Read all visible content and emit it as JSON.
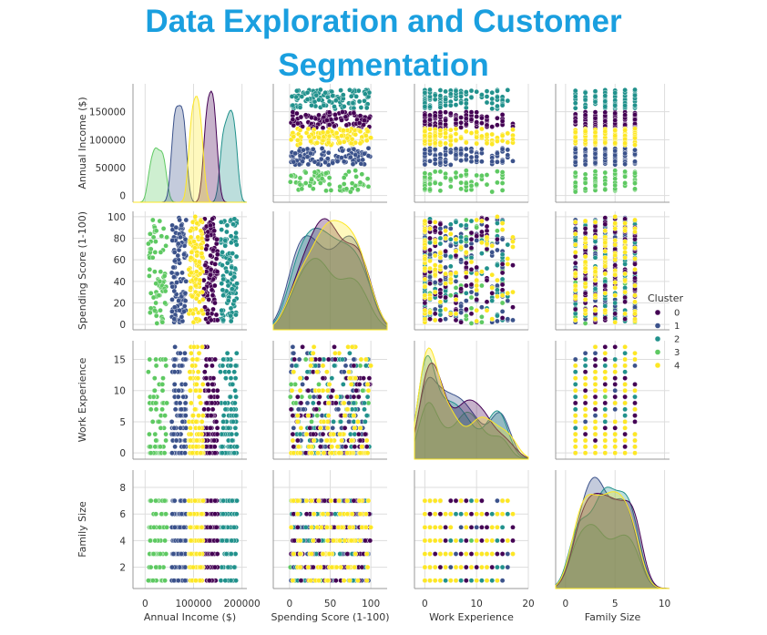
{
  "page": {
    "title_line1": "Data Exploration and Customer",
    "title_line2": "Segmentation"
  },
  "chart_data": {
    "type": "scatter",
    "subtype": "pairplot",
    "title": "Data Exploration and Customer Segmentation",
    "variables": [
      "Annual Income ($)",
      "Spending Score (1-100)",
      "Work Experience",
      "Family Size"
    ],
    "diagonal": "kde",
    "hue": "Cluster",
    "palette": "viridis",
    "legend": {
      "title": "Cluster",
      "placement": "right",
      "entries": [
        "0",
        "1",
        "2",
        "3",
        "4"
      ]
    },
    "cluster_colors": [
      "#440154",
      "#3b528b",
      "#21918c",
      "#5ec962",
      "#fde725"
    ],
    "axes": {
      "Annual Income ($)": {
        "range": [
          -12000,
          200000
        ],
        "ticks": [
          0,
          50000,
          100000,
          150000
        ],
        "tick_labels_y": [
          "0",
          "50000",
          "100000",
          "150000"
        ],
        "tick_labels_x": [
          "0",
          "100000",
          "200000"
        ],
        "x_ticks": [
          0,
          100000,
          200000
        ],
        "x_range": [
          -25000,
          210000
        ]
      },
      "Spending Score (1-100)": {
        "range": [
          -5,
          105
        ],
        "ticks": [
          0,
          20,
          40,
          60,
          80,
          100
        ],
        "tick_labels_y": [
          "0",
          "20",
          "40",
          "60",
          "80",
          "100"
        ],
        "x_ticks": [
          0,
          50,
          100
        ],
        "tick_labels_x": [
          "0",
          "50",
          "100"
        ],
        "x_range": [
          -20,
          120
        ]
      },
      "Work Experience": {
        "range": [
          -1,
          18
        ],
        "ticks": [
          0,
          5,
          10,
          15
        ],
        "tick_labels_y": [
          "0",
          "5",
          "10",
          "15"
        ],
        "x_ticks": [
          0,
          10,
          20
        ],
        "tick_labels_x": [
          "0",
          "10",
          "20"
        ],
        "x_range": [
          -2,
          20
        ]
      },
      "Family Size": {
        "range": [
          0.4,
          9.3
        ],
        "ticks": [
          2,
          4,
          6,
          8
        ],
        "tick_labels_y": [
          "2",
          "4",
          "6",
          "8"
        ],
        "x_ticks": [
          0,
          5,
          10
        ],
        "tick_labels_x": [
          "0",
          "5",
          "10"
        ],
        "x_range": [
          -1,
          10.5
        ]
      }
    },
    "clusters": [
      {
        "name": "0",
        "income_range": [
          120000,
          150000
        ],
        "spending_range": [
          1,
          100
        ],
        "work_experience_range": [
          0,
          17
        ],
        "family_size_range": [
          1,
          8
        ]
      },
      {
        "name": "1",
        "income_range": [
          55000,
          85000
        ],
        "spending_range": [
          1,
          100
        ],
        "work_experience_range": [
          0,
          17
        ],
        "family_size_range": [
          1,
          8
        ]
      },
      {
        "name": "2",
        "income_range": [
          155000,
          190000
        ],
        "spending_range": [
          1,
          100
        ],
        "work_experience_range": [
          0,
          16
        ],
        "family_size_range": [
          1,
          7
        ]
      },
      {
        "name": "3",
        "income_range": [
          5000,
          45000
        ],
        "spending_range": [
          1,
          100
        ],
        "work_experience_range": [
          0,
          15
        ],
        "family_size_range": [
          1,
          9
        ]
      },
      {
        "name": "4",
        "income_range": [
          90000,
          120000
        ],
        "spending_range": [
          1,
          100
        ],
        "work_experience_range": [
          0,
          17
        ],
        "family_size_range": [
          1,
          8
        ]
      }
    ]
  }
}
